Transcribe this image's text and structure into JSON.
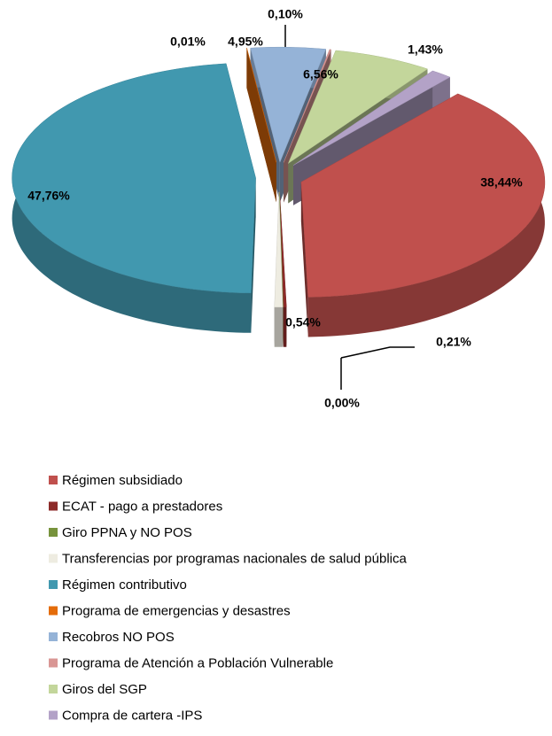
{
  "chart_data": {
    "type": "pie",
    "categories": [
      "Régimen subsidiado",
      "ECAT - pago a prestadores",
      "Giro PPNA y NO POS",
      "Transferencias por programas nacionales  de salud pública",
      "Régimen contributivo",
      "Programa de emergencias y desastres",
      "Recobros NO POS",
      "Programa de Atención a Población Vulnerable",
      "Giros del SGP",
      "Compra de cartera -IPS"
    ],
    "values": [
      38.44,
      0.21,
      0.0,
      0.54,
      47.76,
      0.01,
      4.95,
      0.1,
      6.56,
      1.43
    ],
    "value_labels": [
      "38,44%",
      "0,21%",
      "0,00%",
      "0,54%",
      "47,76%",
      "0,01%",
      "4,95%",
      "0,10%",
      "6,56%",
      "1,43%"
    ],
    "colors": [
      "#c0504d",
      "#8c2a28",
      "#77933c",
      "#eeece1",
      "#4198af",
      "#e46c0a",
      "#95b3d7",
      "#d99694",
      "#c3d69b",
      "#b3a2c7"
    ],
    "legend": "bottom"
  }
}
